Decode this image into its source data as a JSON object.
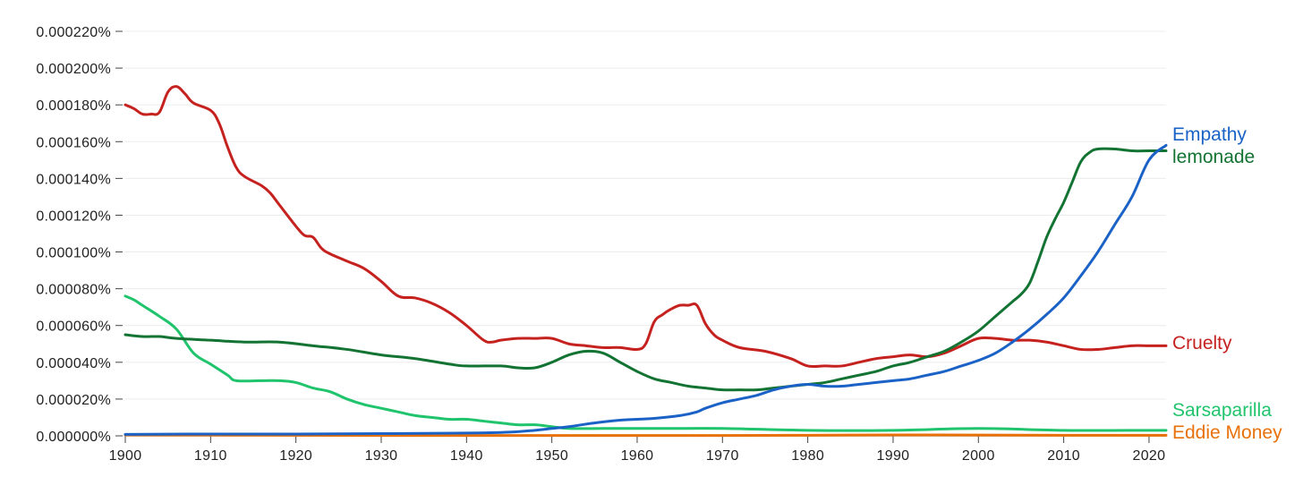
{
  "chart_data": {
    "type": "line",
    "title": "",
    "xlabel": "",
    "ylabel": "",
    "xlim": [
      1900,
      2022
    ],
    "ylim": [
      0,
      0.00022
    ],
    "grid": true,
    "legend_placement": "right-edge line labels",
    "y_ticks": [
      "0.000000%",
      "0.000020%",
      "0.000040%",
      "0.000060%",
      "0.000080%",
      "0.000100%",
      "0.000120%",
      "0.000140%",
      "0.000160%",
      "0.000180%",
      "0.000200%",
      "0.000220%"
    ],
    "x_ticks": [
      "1900",
      "1910",
      "1920",
      "1930",
      "1940",
      "1950",
      "1960",
      "1970",
      "1980",
      "1990",
      "2000",
      "2010",
      "2020"
    ],
    "series": [
      {
        "name": "Cruelty",
        "color": "#c5221f",
        "x": [
          1900,
          1901,
          1902,
          1903,
          1904,
          1905,
          1906,
          1907,
          1908,
          1910,
          1911,
          1912,
          1913,
          1914,
          1916,
          1917,
          1918,
          1920,
          1921,
          1922,
          1923,
          1924,
          1926,
          1928,
          1930,
          1932,
          1934,
          1936,
          1938,
          1940,
          1942,
          1943,
          1944,
          1946,
          1948,
          1950,
          1952,
          1954,
          1956,
          1958,
          1960,
          1961,
          1962,
          1963,
          1964,
          1965,
          1966,
          1967,
          1968,
          1969,
          1970,
          1972,
          1975,
          1978,
          1980,
          1982,
          1984,
          1986,
          1988,
          1990,
          1992,
          1994,
          1996,
          1998,
          2000,
          2002,
          2004,
          2006,
          2008,
          2010,
          2012,
          2014,
          2016,
          2018,
          2020,
          2022
        ],
        "values": [
          0.00018,
          0.000178,
          0.000175,
          0.000175,
          0.000176,
          0.000187,
          0.00019,
          0.000186,
          0.000181,
          0.000177,
          0.00017,
          0.000157,
          0.000146,
          0.000141,
          0.000136,
          0.000132,
          0.000126,
          0.000114,
          0.000109,
          0.000108,
          0.000102,
          9.9e-05,
          9.5e-05,
          9.1e-05,
          8.4e-05,
          7.6e-05,
          7.5e-05,
          7.2e-05,
          6.7e-05,
          6e-05,
          5.2e-05,
          5.1e-05,
          5.2e-05,
          5.3e-05,
          5.3e-05,
          5.3e-05,
          5e-05,
          4.9e-05,
          4.8e-05,
          4.8e-05,
          4.7e-05,
          5e-05,
          6.2e-05,
          6.6e-05,
          6.9e-05,
          7.1e-05,
          7.1e-05,
          7.1e-05,
          6.1e-05,
          5.5e-05,
          5.2e-05,
          4.8e-05,
          4.6e-05,
          4.2e-05,
          3.8e-05,
          3.8e-05,
          3.8e-05,
          4e-05,
          4.2e-05,
          4.3e-05,
          4.4e-05,
          4.3e-05,
          4.5e-05,
          4.9e-05,
          5.3e-05,
          5.3e-05,
          5.2e-05,
          5.2e-05,
          5.1e-05,
          4.9e-05,
          4.7e-05,
          4.7e-05,
          4.8e-05,
          4.9e-05,
          4.9e-05,
          4.9e-05
        ]
      },
      {
        "name": "lemonade",
        "color": "#137333",
        "x": [
          1900,
          1902,
          1904,
          1906,
          1910,
          1914,
          1918,
          1922,
          1926,
          1930,
          1934,
          1938,
          1940,
          1944,
          1946,
          1948,
          1950,
          1952,
          1954,
          1956,
          1958,
          1960,
          1962,
          1964,
          1966,
          1968,
          1970,
          1972,
          1974,
          1976,
          1978,
          1980,
          1982,
          1984,
          1986,
          1988,
          1990,
          1992,
          1994,
          1996,
          1998,
          2000,
          2002,
          2004,
          2005,
          2006,
          2007,
          2008,
          2009,
          2010,
          2011,
          2012,
          2013,
          2014,
          2016,
          2018,
          2020,
          2022
        ],
        "values": [
          5.5e-05,
          5.4e-05,
          5.4e-05,
          5.3e-05,
          5.2e-05,
          5.1e-05,
          5.1e-05,
          4.9e-05,
          4.7e-05,
          4.4e-05,
          4.2e-05,
          3.9e-05,
          3.8e-05,
          3.8e-05,
          3.7e-05,
          3.7e-05,
          4e-05,
          4.4e-05,
          4.6e-05,
          4.5e-05,
          4e-05,
          3.5e-05,
          3.1e-05,
          2.9e-05,
          2.7e-05,
          2.6e-05,
          2.5e-05,
          2.5e-05,
          2.5e-05,
          2.6e-05,
          2.7e-05,
          2.8e-05,
          2.9e-05,
          3.1e-05,
          3.3e-05,
          3.5e-05,
          3.8e-05,
          4e-05,
          4.3e-05,
          4.6e-05,
          5.1e-05,
          5.7e-05,
          6.5e-05,
          7.3e-05,
          7.7e-05,
          8.3e-05,
          9.5e-05,
          0.000108,
          0.000118,
          0.000127,
          0.000138,
          0.000149,
          0.000154,
          0.000156,
          0.000156,
          0.000155,
          0.000155,
          0.000155
        ]
      },
      {
        "name": "Empathy",
        "color": "#1a62c6",
        "x": [
          1900,
          1910,
          1920,
          1930,
          1940,
          1945,
          1948,
          1950,
          1952,
          1955,
          1958,
          1962,
          1965,
          1967,
          1968,
          1970,
          1972,
          1974,
          1976,
          1978,
          1980,
          1982,
          1984,
          1986,
          1988,
          1990,
          1992,
          1994,
          1996,
          1998,
          2000,
          2002,
          2004,
          2006,
          2008,
          2010,
          2012,
          2014,
          2016,
          2018,
          2020,
          2022
        ],
        "values": [
          8e-07,
          1e-06,
          1e-06,
          1.2e-06,
          1.5e-06,
          2e-06,
          3e-06,
          4e-06,
          5e-06,
          7e-06,
          8.5e-06,
          9.5e-06,
          1.1e-05,
          1.3e-05,
          1.5e-05,
          1.8e-05,
          2e-05,
          2.2e-05,
          2.5e-05,
          2.7e-05,
          2.8e-05,
          2.7e-05,
          2.7e-05,
          2.8e-05,
          2.9e-05,
          3e-05,
          3.1e-05,
          3.3e-05,
          3.5e-05,
          3.8e-05,
          4.1e-05,
          4.5e-05,
          5.1e-05,
          5.8e-05,
          6.6e-05,
          7.5e-05,
          8.7e-05,
          0.0001,
          0.000115,
          0.00013,
          0.00015,
          0.000158
        ]
      },
      {
        "name": "Sarsaparilla",
        "color": "#1fc46c",
        "x": [
          1900,
          1901,
          1902,
          1904,
          1906,
          1908,
          1910,
          1912,
          1913,
          1916,
          1918,
          1920,
          1922,
          1924,
          1926,
          1928,
          1930,
          1932,
          1934,
          1936,
          1938,
          1940,
          1942,
          1944,
          1946,
          1948,
          1950,
          1952,
          1956,
          1960,
          1964,
          1970,
          1980,
          1990,
          2000,
          2010,
          2020,
          2022
        ],
        "values": [
          7.6e-05,
          7.4e-05,
          7.1e-05,
          6.5e-05,
          5.8e-05,
          4.5e-05,
          3.9e-05,
          3.3e-05,
          3e-05,
          3e-05,
          3e-05,
          2.9e-05,
          2.6e-05,
          2.4e-05,
          2e-05,
          1.7e-05,
          1.5e-05,
          1.3e-05,
          1.1e-05,
          1e-05,
          9e-06,
          9e-06,
          8e-06,
          7e-06,
          6e-06,
          6e-06,
          5e-06,
          4e-06,
          4e-06,
          4e-06,
          4e-06,
          4e-06,
          3e-06,
          3e-06,
          4e-06,
          3e-06,
          3e-06,
          3e-06
        ]
      },
      {
        "name": "Eddie Money",
        "color": "#e8710a",
        "x": [
          1900,
          1910,
          1920,
          1930,
          1940,
          1950,
          1960,
          1970,
          1980,
          1990,
          2000,
          2010,
          2020,
          2022
        ],
        "values": [
          5e-07,
          4e-07,
          3e-07,
          2e-07,
          2e-07,
          2e-07,
          2e-07,
          2e-07,
          3e-07,
          5e-07,
          4e-07,
          3e-07,
          3e-07,
          3e-07
        ]
      }
    ]
  }
}
